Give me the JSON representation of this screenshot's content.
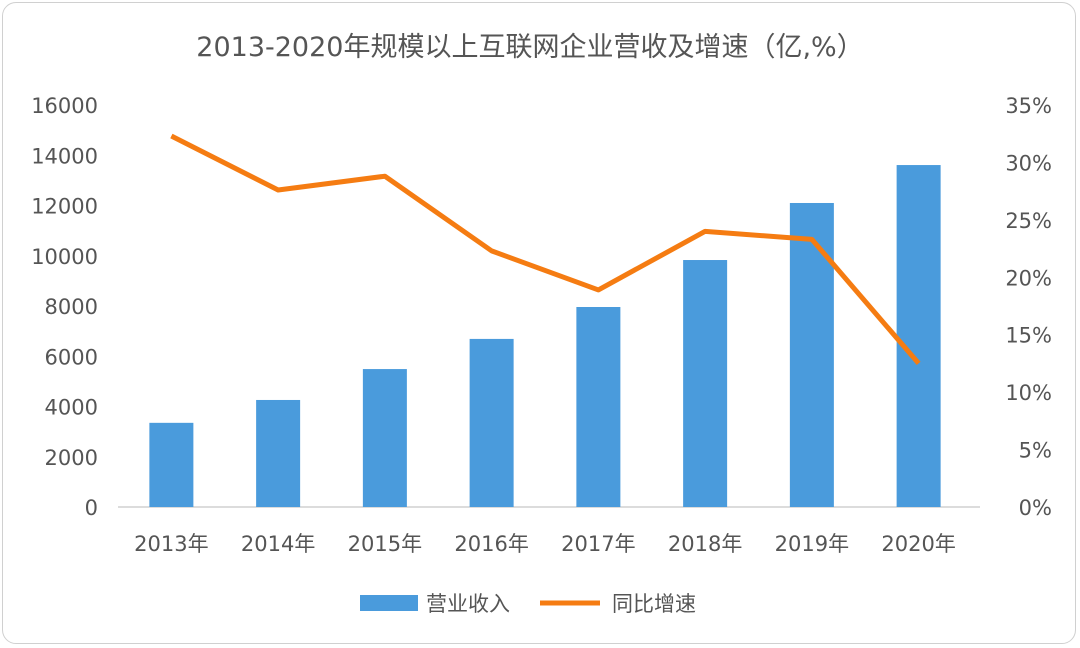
{
  "chart_data": {
    "type": "bar+line",
    "title": "2013-2020年规模以上互联网企业营收及增速（亿,%）",
    "categories": [
      "2013年",
      "2014年",
      "2015年",
      "2016年",
      "2017年",
      "2018年",
      "2019年",
      "2020年"
    ],
    "series": [
      {
        "name": "营业收入",
        "type": "bar",
        "axis": "left",
        "color": "#4a9bdc",
        "values": [
          3350,
          4260,
          5490,
          6690,
          7960,
          9830,
          12100,
          13610
        ]
      },
      {
        "name": "同比增速",
        "type": "line",
        "axis": "right",
        "color": "#f57c12",
        "values": [
          32.3,
          27.6,
          28.8,
          22.3,
          18.9,
          24.0,
          23.3,
          12.5
        ]
      }
    ],
    "y_left": {
      "range": [
        0,
        16000
      ],
      "ticks": [
        "0",
        "2000",
        "4000",
        "6000",
        "8000",
        "10000",
        "12000",
        "14000",
        "16000"
      ]
    },
    "y_right": {
      "range": [
        0,
        35
      ],
      "ticks": [
        "0%",
        "5%",
        "10%",
        "15%",
        "20%",
        "25%",
        "30%",
        "35%"
      ]
    },
    "grid": false,
    "legend": "bottom"
  }
}
